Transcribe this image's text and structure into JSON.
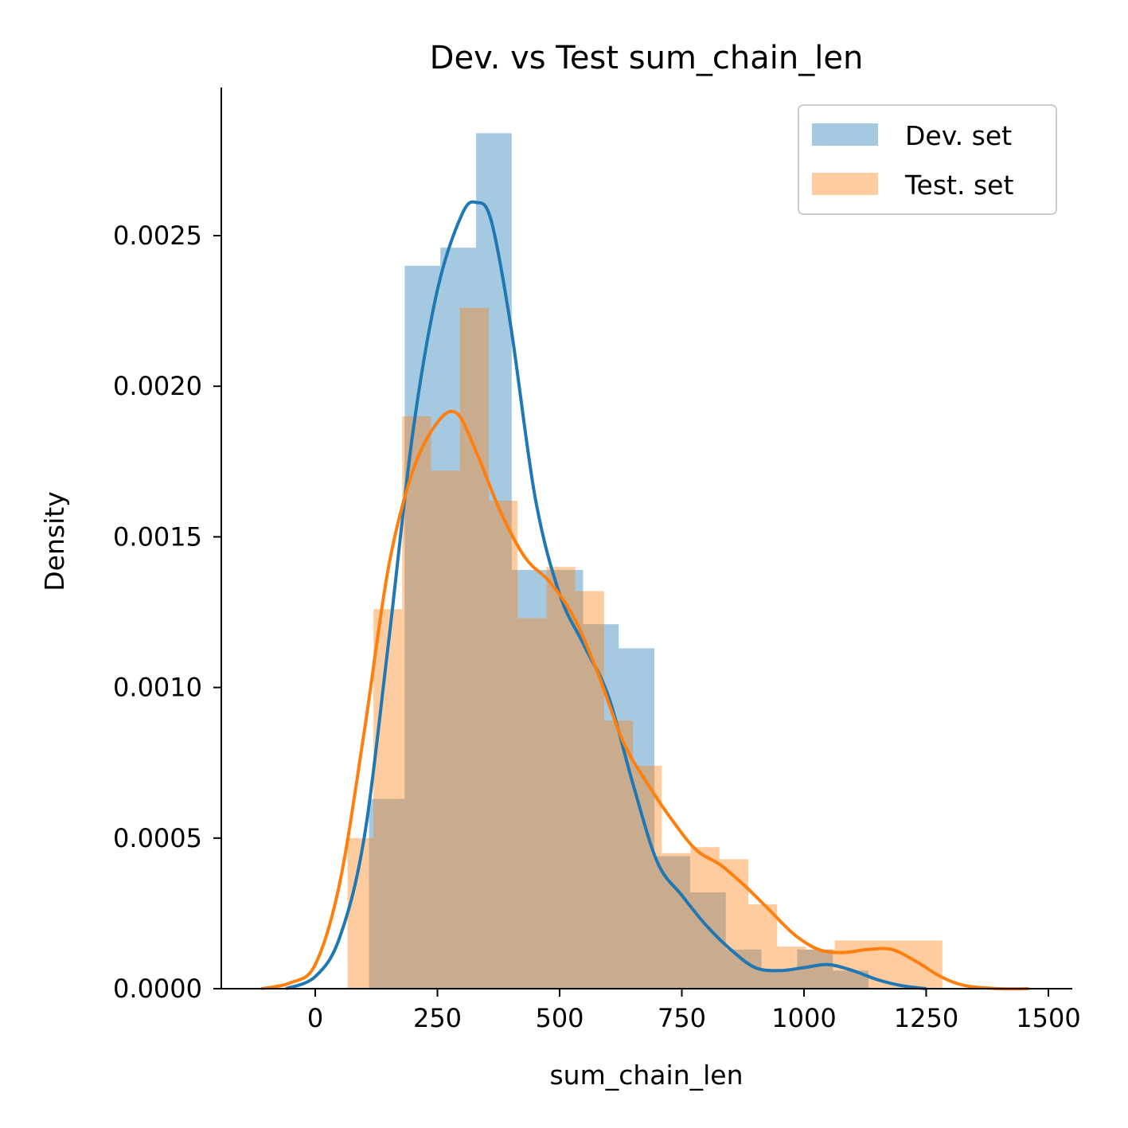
{
  "chart_data": {
    "type": "histogram+kde",
    "title": "Dev. vs Test sum_chain_len",
    "xlabel": "sum_chain_len",
    "ylabel": "Density",
    "xlim": [
      -200,
      1550
    ],
    "ylim": [
      0,
      0.00298
    ],
    "x_ticks": [
      0,
      250,
      500,
      750,
      1000,
      1250,
      1500
    ],
    "x_tick_labels": [
      "0",
      "250",
      "500",
      "750",
      "1000",
      "1250",
      "1500"
    ],
    "y_ticks": [
      0,
      0.0005,
      0.001,
      0.0015,
      0.002,
      0.0025
    ],
    "y_tick_labels": [
      "0.0000",
      "0.0005",
      "0.0010",
      "0.0015",
      "0.0020",
      "0.0025"
    ],
    "legend_position": "top-right",
    "series": [
      {
        "name": "Dev. set",
        "hist_color": "#a6c7e0",
        "line_color": "#1f77b4",
        "bins": [
          {
            "x0": 110,
            "x1": 183,
            "density": 0.00063
          },
          {
            "x0": 183,
            "x1": 256,
            "density": 0.0024
          },
          {
            "x0": 256,
            "x1": 329,
            "density": 0.00246
          },
          {
            "x0": 329,
            "x1": 402,
            "density": 0.00284
          },
          {
            "x0": 402,
            "x1": 475,
            "density": 0.00139
          },
          {
            "x0": 475,
            "x1": 548,
            "density": 0.00139
          },
          {
            "x0": 548,
            "x1": 621,
            "density": 0.00121
          },
          {
            "x0": 621,
            "x1": 694,
            "density": 0.00113
          },
          {
            "x0": 694,
            "x1": 767,
            "density": 0.00044
          },
          {
            "x0": 767,
            "x1": 840,
            "density": 0.00032
          },
          {
            "x0": 840,
            "x1": 913,
            "density": 0.00013
          },
          {
            "x0": 913,
            "x1": 986,
            "density": 6e-05
          },
          {
            "x0": 986,
            "x1": 1059,
            "density": 0.00013
          },
          {
            "x0": 1059,
            "x1": 1132,
            "density": 6e-05
          }
        ],
        "kde": [
          [
            -60,
            0.0
          ],
          [
            0,
            4e-05
          ],
          [
            50,
            0.00017
          ],
          [
            100,
            0.0005
          ],
          [
            150,
            0.00115
          ],
          [
            200,
            0.00185
          ],
          [
            250,
            0.00232
          ],
          [
            300,
            0.00257
          ],
          [
            330,
            0.00261
          ],
          [
            360,
            0.00255
          ],
          [
            400,
            0.0022
          ],
          [
            450,
            0.00163
          ],
          [
            500,
            0.00131
          ],
          [
            550,
            0.00114
          ],
          [
            600,
            0.00097
          ],
          [
            650,
            0.00068
          ],
          [
            700,
            0.00042
          ],
          [
            750,
            0.00031
          ],
          [
            800,
            0.00021
          ],
          [
            850,
            0.00013
          ],
          [
            900,
            7e-05
          ],
          [
            950,
            6e-05
          ],
          [
            1000,
            7e-05
          ],
          [
            1050,
            8e-05
          ],
          [
            1100,
            6e-05
          ],
          [
            1150,
            3e-05
          ],
          [
            1200,
            1e-05
          ],
          [
            1250,
            0.0
          ]
        ]
      },
      {
        "name": "Test. set",
        "hist_color": "#ffc896",
        "line_color": "#ff7f0e",
        "bins": [
          {
            "x0": 66,
            "x1": 119,
            "density": 0.0005
          },
          {
            "x0": 119,
            "x1": 178,
            "density": 0.00126
          },
          {
            "x0": 178,
            "x1": 237,
            "density": 0.0019
          },
          {
            "x0": 237,
            "x1": 296,
            "density": 0.00172
          },
          {
            "x0": 296,
            "x1": 355,
            "density": 0.00226
          },
          {
            "x0": 355,
            "x1": 414,
            "density": 0.00162
          },
          {
            "x0": 414,
            "x1": 473,
            "density": 0.00123
          },
          {
            "x0": 473,
            "x1": 532,
            "density": 0.0014
          },
          {
            "x0": 532,
            "x1": 591,
            "density": 0.00132
          },
          {
            "x0": 591,
            "x1": 650,
            "density": 0.00089
          },
          {
            "x0": 650,
            "x1": 709,
            "density": 0.00074
          },
          {
            "x0": 709,
            "x1": 768,
            "density": 0.00045
          },
          {
            "x0": 768,
            "x1": 827,
            "density": 0.00047
          },
          {
            "x0": 827,
            "x1": 886,
            "density": 0.00043
          },
          {
            "x0": 886,
            "x1": 945,
            "density": 0.00028
          },
          {
            "x0": 945,
            "x1": 1004,
            "density": 0.00014
          },
          {
            "x0": 1004,
            "x1": 1063,
            "density": 0.00013
          },
          {
            "x0": 1063,
            "x1": 1122,
            "density": 0.00016
          },
          {
            "x0": 1122,
            "x1": 1283,
            "density": 0.00016
          }
        ],
        "kde": [
          [
            -110,
            0.0
          ],
          [
            -50,
            2e-05
          ],
          [
            0,
            8e-05
          ],
          [
            50,
            0.00035
          ],
          [
            100,
            0.00085
          ],
          [
            150,
            0.0014
          ],
          [
            200,
            0.00172
          ],
          [
            250,
            0.00188
          ],
          [
            290,
            0.00191
          ],
          [
            330,
            0.00178
          ],
          [
            380,
            0.00158
          ],
          [
            430,
            0.00143
          ],
          [
            480,
            0.00135
          ],
          [
            530,
            0.00123
          ],
          [
            580,
            0.00104
          ],
          [
            630,
            0.00082
          ],
          [
            680,
            0.00068
          ],
          [
            730,
            0.00056
          ],
          [
            780,
            0.00046
          ],
          [
            830,
            0.00041
          ],
          [
            880,
            0.00034
          ],
          [
            930,
            0.00026
          ],
          [
            980,
            0.00018
          ],
          [
            1030,
            0.00013
          ],
          [
            1080,
            0.00012
          ],
          [
            1130,
            0.00013
          ],
          [
            1180,
            0.00013
          ],
          [
            1230,
            9e-05
          ],
          [
            1280,
            4e-05
          ],
          [
            1330,
            1e-05
          ],
          [
            1400,
            0.0
          ],
          [
            1460,
            0.0
          ]
        ]
      }
    ]
  }
}
